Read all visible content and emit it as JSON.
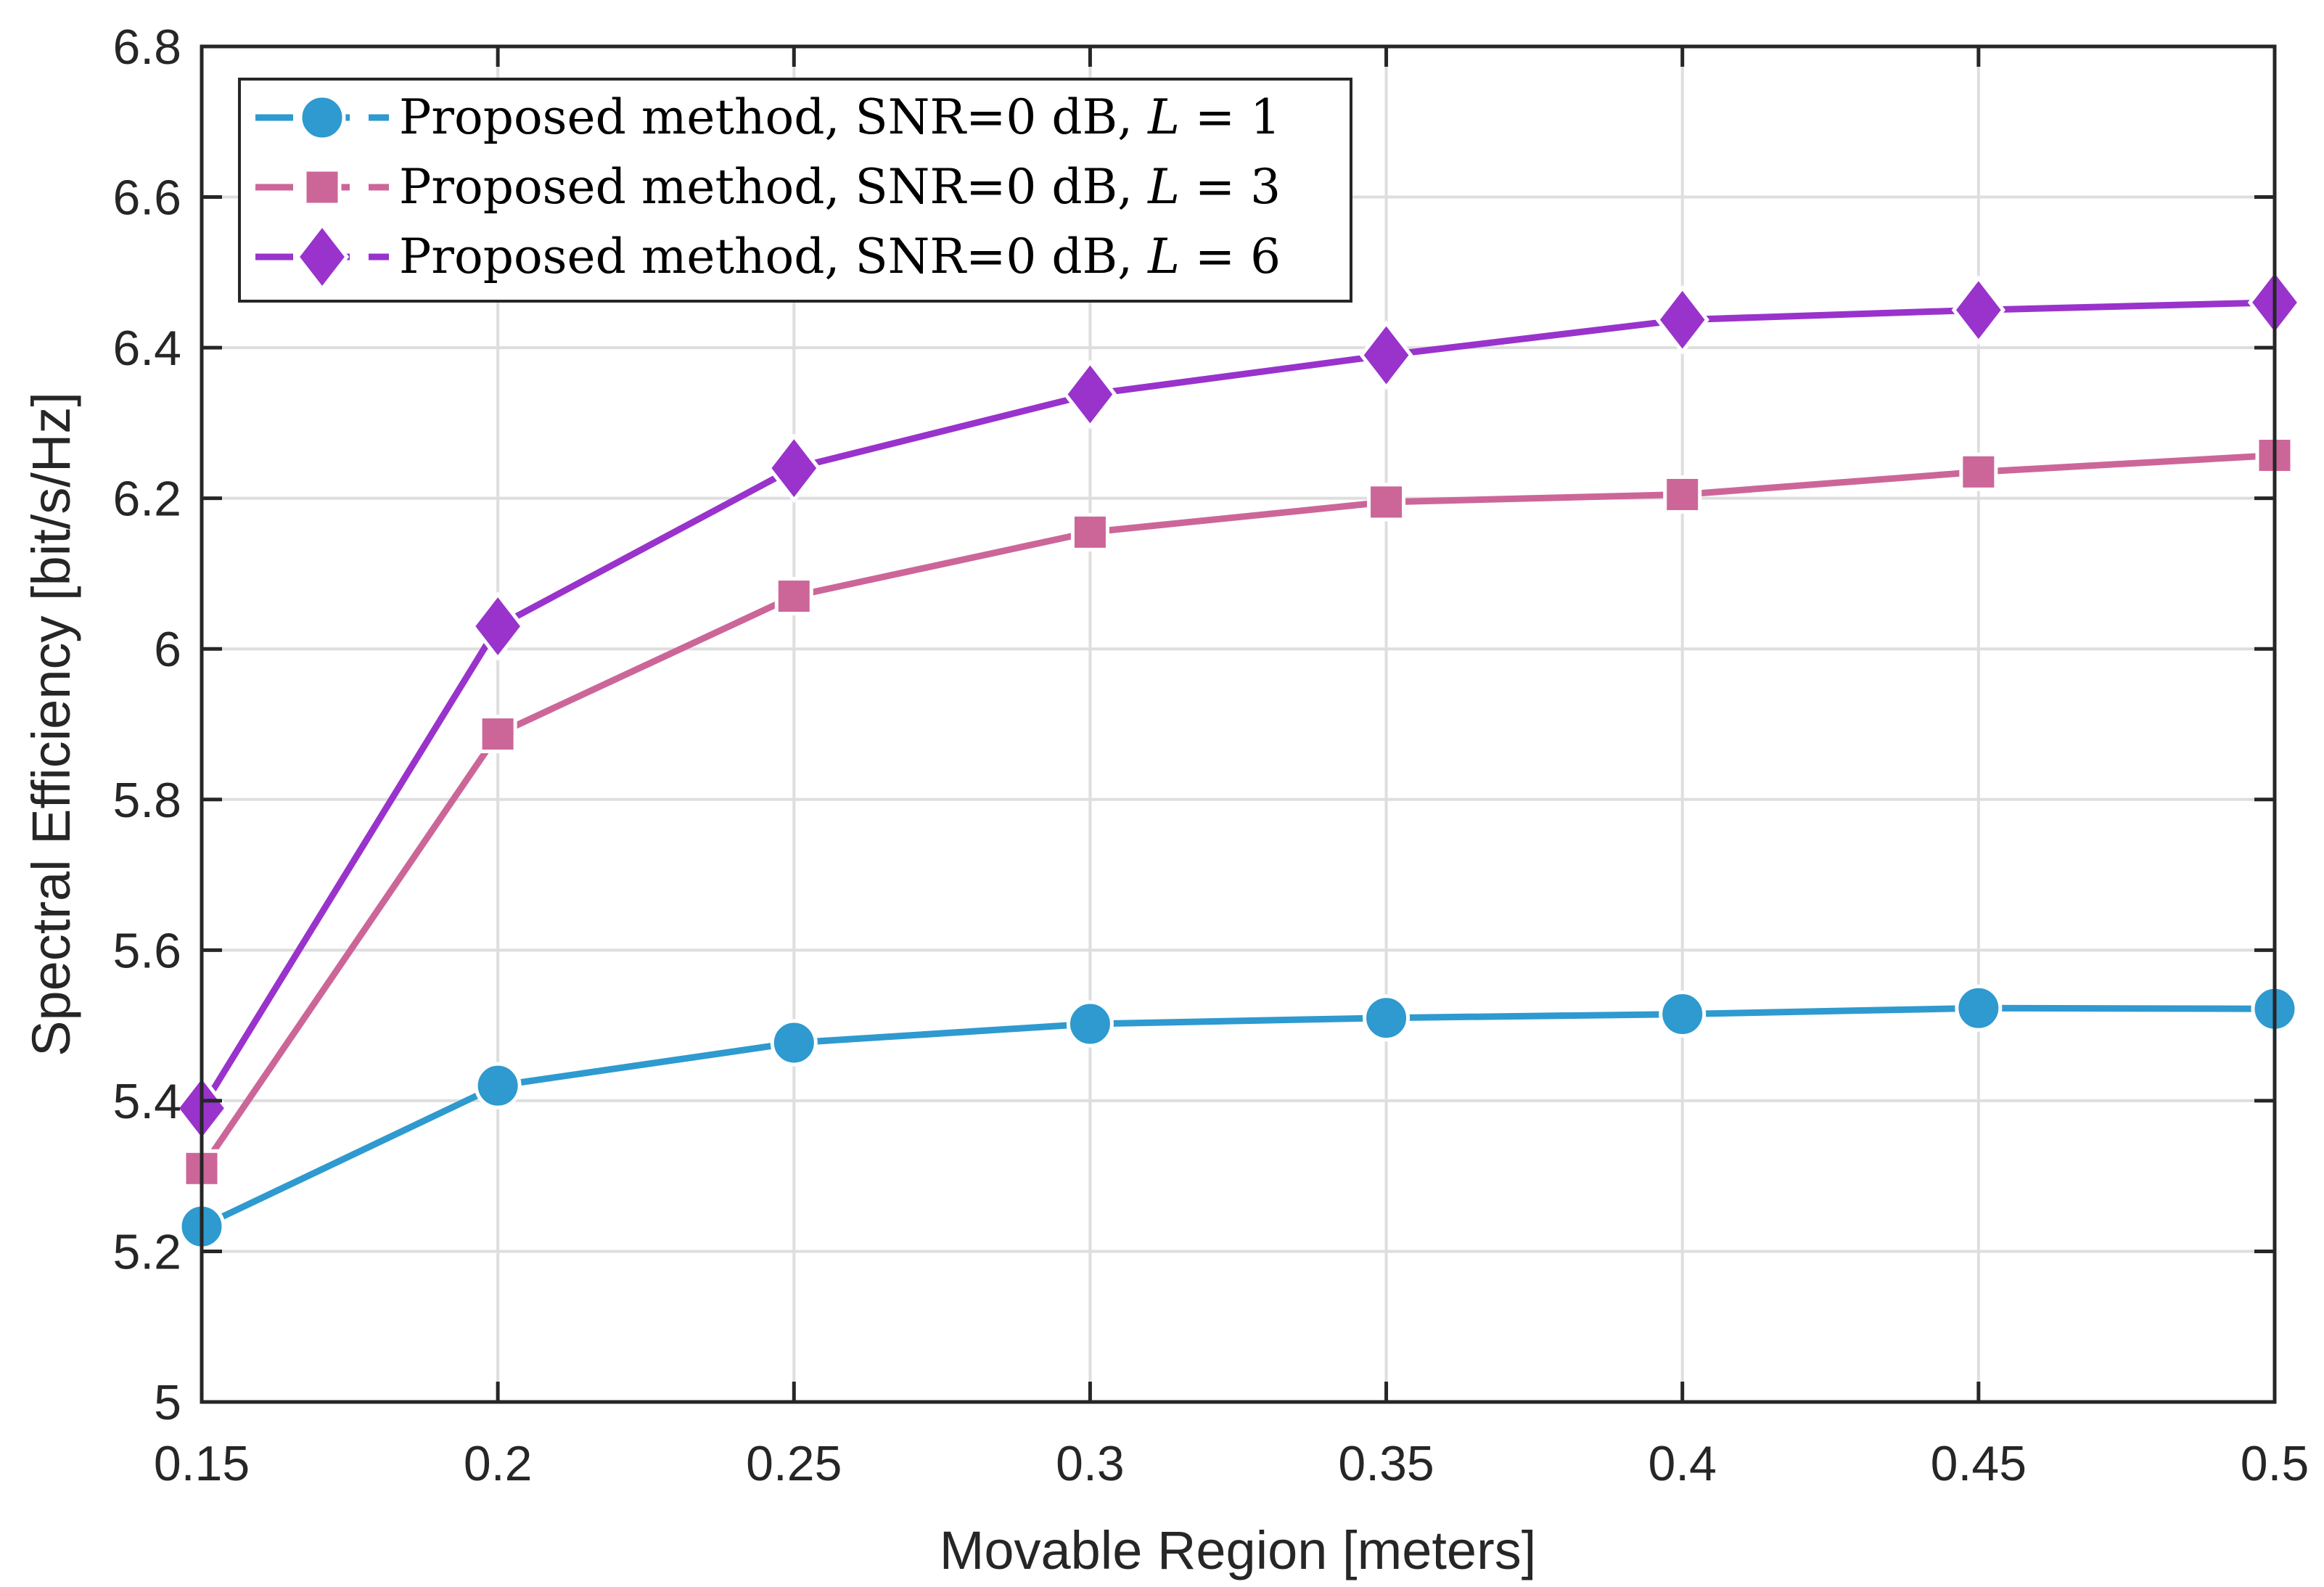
{
  "chart_data": {
    "type": "line",
    "title": "",
    "xlabel": "Movable Region [meters]",
    "ylabel": "Spectral Efficiency [bit/s/Hz]",
    "xlim": [
      0.15,
      0.5
    ],
    "ylim": [
      5,
      6.8
    ],
    "xticks": [
      0.15,
      0.2,
      0.25,
      0.3,
      0.35,
      0.4,
      0.45,
      0.5
    ],
    "xtick_labels": [
      "0.15",
      "0.2",
      "0.25",
      "0.3",
      "0.35",
      "0.4",
      "0.45",
      "0.5"
    ],
    "yticks": [
      5,
      5.2,
      5.4,
      5.6,
      5.8,
      6,
      6.2,
      6.4,
      6.6,
      6.8
    ],
    "ytick_labels": [
      "5",
      "5.2",
      "5.4",
      "5.6",
      "5.8",
      "6",
      "6.2",
      "6.4",
      "6.6",
      "6.8"
    ],
    "grid": true,
    "legend_position": "top-left",
    "x": [
      0.15,
      0.2,
      0.25,
      0.3,
      0.35,
      0.4,
      0.45,
      0.5
    ],
    "series": [
      {
        "name": "Proposed method, SNR=0 dB, L = 1",
        "legend_prefix": "Proposed method, SNR=0 dB, ",
        "legend_var": "L",
        "legend_suffix": " = 1",
        "marker": "circle",
        "color": "#2E9ACF",
        "values": [
          5.233,
          5.42,
          5.477,
          5.502,
          5.51,
          5.515,
          5.523,
          5.522
        ]
      },
      {
        "name": "Proposed method, SNR=0 dB, L = 3",
        "legend_prefix": "Proposed method, SNR=0 dB, ",
        "legend_var": "L",
        "legend_suffix": " = 3",
        "marker": "square",
        "color": "#CC6699",
        "values": [
          5.31,
          5.887,
          6.07,
          6.155,
          6.195,
          6.205,
          6.235,
          6.257
        ]
      },
      {
        "name": "Proposed method, SNR=0 dB, L = 6",
        "legend_prefix": "Proposed method, SNR=0 dB, ",
        "legend_var": "L",
        "legend_suffix": " = 6",
        "marker": "diamond",
        "color": "#9933CC",
        "values": [
          5.39,
          6.03,
          6.24,
          6.338,
          6.39,
          6.437,
          6.45,
          6.46
        ]
      }
    ]
  }
}
